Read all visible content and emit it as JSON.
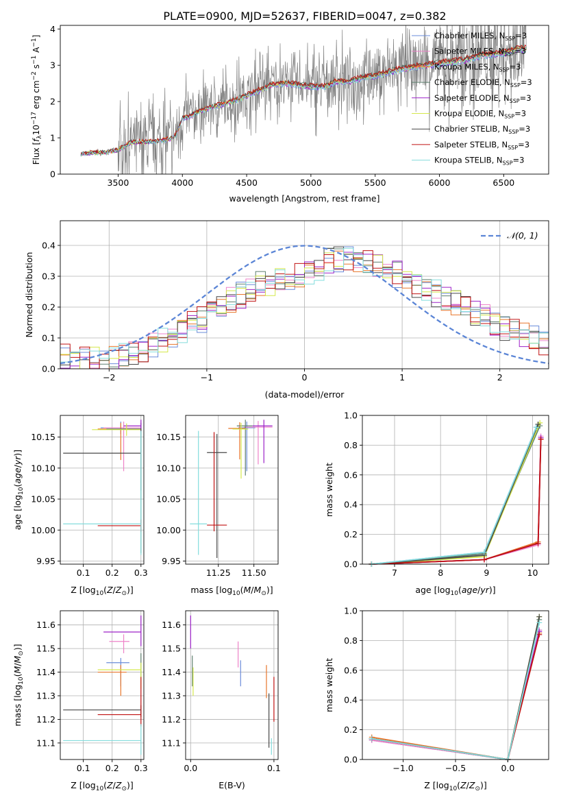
{
  "figure_title": "PLATE=0900, MJD=52637, FIBERID=0047, z=0.382",
  "legend_models": [
    {
      "name": "Chabrier MILES",
      "color": "#6a8bd9"
    },
    {
      "name": "Salpeter MILES",
      "color": "#ee82c8"
    },
    {
      "name": "Kroupa MILES",
      "color": "#e8762a"
    },
    {
      "name": "Chabrier ELODIE",
      "color": "#5d7f6e"
    },
    {
      "name": "Salpeter ELODIE",
      "color": "#9c20c8"
    },
    {
      "name": "Kroupa ELODIE",
      "color": "#d4e84a"
    },
    {
      "name": "Chabrier STELIB",
      "color": "#474747"
    },
    {
      "name": "Salpeter STELIB",
      "color": "#c01010"
    },
    {
      "name": "Kroupa STELIB",
      "color": "#82dcdc"
    }
  ],
  "legend_suffix": "SSP",
  "legend_count": "=3",
  "chart_data": [
    {
      "id": "spectrum",
      "type": "line",
      "title": "PLATE=0900, MJD=52637, FIBERID=0047, z=0.382",
      "xlabel": "wavelength [Angstrom, rest frame]",
      "ylabel": "Flux [f_λ 10^-17 erg cm^-2 s^-1 A^-1]",
      "xlim": [
        3050,
        6850
      ],
      "ylim": [
        0,
        4.1
      ],
      "xticks": [
        3500,
        4000,
        4500,
        5000,
        5500,
        6000,
        6500
      ],
      "yticks": [
        0,
        1,
        2,
        3,
        4
      ],
      "continuum_x": [
        3200,
        3300,
        3400,
        3500,
        3600,
        3700,
        3800,
        3900,
        3950,
        4000,
        4100,
        4200,
        4300,
        4400,
        4500,
        4600,
        4700,
        4800,
        4900,
        5000,
        5100,
        5200,
        5300,
        5400,
        5500,
        5600,
        5700,
        5800,
        5900,
        6000,
        6100,
        6200,
        6300,
        6400,
        6500,
        6600,
        6700
      ],
      "continuum_y": [
        0.55,
        0.6,
        0.6,
        0.68,
        0.9,
        0.9,
        0.92,
        0.98,
        1.1,
        1.55,
        1.7,
        1.85,
        1.95,
        2.05,
        2.2,
        2.35,
        2.5,
        2.55,
        2.5,
        2.45,
        2.45,
        2.6,
        2.6,
        2.7,
        2.75,
        2.85,
        2.95,
        3.0,
        3.05,
        3.1,
        3.15,
        3.2,
        3.3,
        3.35,
        3.4,
        3.5,
        3.5
      ],
      "grid": false
    },
    {
      "id": "residuals",
      "type": "histogram",
      "xlabel": "(data-model)/error",
      "ylabel": "Normed distribution",
      "xlim": [
        -2.5,
        2.5
      ],
      "ylim": [
        0,
        0.48
      ],
      "xticks": [
        -2,
        -1,
        0,
        1,
        2
      ],
      "yticks": [
        0.0,
        0.1,
        0.2,
        0.3,
        0.4
      ],
      "bin_width": 0.1,
      "envelope_x": [
        -2.5,
        -2.0,
        -1.5,
        -1.0,
        -0.5,
        0.0,
        0.3,
        0.5,
        0.8,
        1.0,
        1.5,
        2.0,
        2.5
      ],
      "envelope_y": [
        0.04,
        0.03,
        0.08,
        0.17,
        0.27,
        0.3,
        0.36,
        0.35,
        0.33,
        0.3,
        0.22,
        0.14,
        0.08
      ],
      "reference_curve": "𝒩(0, 1)",
      "grid": true
    },
    {
      "id": "age_vs_Z",
      "type": "errorbar",
      "xlabel": "Z [log10(Z/Z⊙)]",
      "ylabel": "age [log10(age/yr)]",
      "xlim": [
        0.02,
        0.31
      ],
      "ylim": [
        9.945,
        10.185
      ],
      "xticks": [
        0.1,
        0.2,
        0.3
      ],
      "yticks": [
        9.95,
        10.0,
        10.05,
        10.1,
        10.15
      ],
      "points": [
        {
          "model": 0,
          "x": 0.23,
          "xerr": [
            0.07,
            0.07
          ],
          "y": 10.165,
          "yerr": [
            0.01,
            0.01
          ]
        },
        {
          "model": 1,
          "x": 0.24,
          "xerr": [
            0.07,
            0.06
          ],
          "y": 10.165,
          "yerr": [
            0.07,
            0.01
          ]
        },
        {
          "model": 2,
          "x": 0.23,
          "xerr": [
            0.08,
            0.07
          ],
          "y": 10.163,
          "yerr": [
            0.05,
            0.01
          ]
        },
        {
          "model": 3,
          "x": 0.3,
          "xerr": [
            0.12,
            0.0
          ],
          "y": 10.163,
          "yerr": [
            0.2,
            0.01
          ]
        },
        {
          "model": 4,
          "x": 0.3,
          "xerr": [
            0.06,
            0.0
          ],
          "y": 10.168,
          "yerr": [
            0.01,
            0.01
          ]
        },
        {
          "model": 5,
          "x": 0.25,
          "xerr": [
            0.12,
            0.05
          ],
          "y": 10.162,
          "yerr": [
            0.01,
            0.01
          ]
        },
        {
          "model": 6,
          "x": 0.3,
          "xerr": [
            0.27,
            0.0
          ],
          "y": 10.124,
          "yerr": [
            0.06,
            0.04
          ]
        },
        {
          "model": 7,
          "x": 0.3,
          "xerr": [
            0.15,
            0.0
          ],
          "y": 10.007,
          "yerr": [
            0.01,
            0.01
          ]
        },
        {
          "model": 8,
          "x": 0.3,
          "xerr": [
            0.27,
            0.0
          ],
          "y": 10.01,
          "yerr": [
            0.05,
            0.15
          ]
        }
      ],
      "grid": true
    },
    {
      "id": "age_vs_mass",
      "type": "errorbar",
      "xlabel": "mass [log10(M/M⊙)]",
      "ylabel": "",
      "xlim": [
        11.02,
        11.67
      ],
      "ylim": [
        9.945,
        10.185
      ],
      "xticks": [
        11.25,
        11.5
      ],
      "yticks": [
        9.95,
        10.0,
        10.05,
        10.1,
        10.15
      ],
      "points": [
        {
          "model": 0,
          "x": 11.45,
          "xerr": [
            0.06,
            0.06
          ],
          "y": 10.165,
          "yerr": [
            0.07,
            0.01
          ]
        },
        {
          "model": 1,
          "x": 11.53,
          "xerr": [
            0.1,
            0.1
          ],
          "y": 10.166,
          "yerr": [
            0.06,
            0.01
          ]
        },
        {
          "model": 2,
          "x": 11.4,
          "xerr": [
            0.08,
            0.04
          ],
          "y": 10.164,
          "yerr": [
            0.05,
            0.01
          ]
        },
        {
          "model": 3,
          "x": 11.44,
          "xerr": [
            0.06,
            0.05
          ],
          "y": 10.168,
          "yerr": [
            0.08,
            0.01
          ]
        },
        {
          "model": 4,
          "x": 11.57,
          "xerr": [
            0.08,
            0.06
          ],
          "y": 10.168,
          "yerr": [
            0.06,
            0.01
          ]
        },
        {
          "model": 5,
          "x": 11.41,
          "xerr": [
            0.06,
            0.05
          ],
          "y": 10.163,
          "yerr": [
            0.08,
            0.01
          ]
        },
        {
          "model": 6,
          "x": 11.24,
          "xerr": [
            0.07,
            0.07
          ],
          "y": 10.125,
          "yerr": [
            0.17,
            0.03
          ]
        },
        {
          "model": 7,
          "x": 11.22,
          "xerr": [
            0.05,
            0.09
          ],
          "y": 10.008,
          "yerr": [
            0.01,
            0.15
          ]
        },
        {
          "model": 8,
          "x": 11.11,
          "xerr": [
            0.06,
            0.06
          ],
          "y": 10.01,
          "yerr": [
            0.05,
            0.15
          ]
        }
      ],
      "grid": true
    },
    {
      "id": "mass_weight_vs_age",
      "type": "line",
      "xlabel": "age [log10(age/yr)]",
      "ylabel": "mass weight",
      "xlim": [
        6.3,
        10.35
      ],
      "ylim": [
        0,
        1.0
      ],
      "xticks": [
        7,
        8,
        9,
        10
      ],
      "yticks": [
        0.0,
        0.2,
        0.4,
        0.6,
        0.8,
        1.0
      ],
      "series": [
        {
          "model": 0,
          "x": [
            6.5,
            8.95,
            10.08
          ],
          "y": [
            0.0,
            0.08,
            0.92
          ]
        },
        {
          "model": 1,
          "x": [
            6.5,
            8.95,
            10.12,
            10.18
          ],
          "y": [
            0.0,
            0.03,
            0.13,
            0.86
          ]
        },
        {
          "model": 2,
          "x": [
            6.5,
            8.95,
            10.12,
            10.18
          ],
          "y": [
            0.0,
            0.03,
            0.15,
            0.84
          ]
        },
        {
          "model": 3,
          "x": [
            6.5,
            8.95,
            10.16
          ],
          "y": [
            0.0,
            0.07,
            0.93
          ]
        },
        {
          "model": 4,
          "x": [
            6.5,
            8.95,
            10.12,
            10.18
          ],
          "y": [
            0.0,
            0.03,
            0.14,
            0.85
          ]
        },
        {
          "model": 5,
          "x": [
            6.5,
            8.95,
            10.16
          ],
          "y": [
            0.0,
            0.05,
            0.95
          ]
        },
        {
          "model": 6,
          "x": [
            6.5,
            8.95,
            10.12
          ],
          "y": [
            0.0,
            0.06,
            0.94
          ]
        },
        {
          "model": 7,
          "x": [
            6.5,
            8.95,
            10.12,
            10.18
          ],
          "y": [
            0.0,
            0.03,
            0.14,
            0.84
          ]
        },
        {
          "model": 8,
          "x": [
            6.5,
            8.95,
            10.08
          ],
          "y": [
            0.0,
            0.08,
            0.92
          ]
        }
      ],
      "grid": true
    },
    {
      "id": "mass_vs_Z",
      "type": "errorbar",
      "xlabel": "Z [log10(Z/Z⊙)]",
      "ylabel": "mass [log10(M/M⊙)]",
      "xlim": [
        0.02,
        0.31
      ],
      "ylim": [
        11.03,
        11.66
      ],
      "xticks": [
        0.1,
        0.2,
        0.3
      ],
      "yticks": [
        11.1,
        11.2,
        11.3,
        11.4,
        11.5,
        11.6
      ],
      "points": [
        {
          "model": 0,
          "x": 0.23,
          "xerr": [
            0.05,
            0.03
          ],
          "y": 11.44,
          "yerr": [
            0.1,
            0.02
          ]
        },
        {
          "model": 1,
          "x": 0.24,
          "xerr": [
            0.05,
            0.02
          ],
          "y": 11.53,
          "yerr": [
            0.05,
            0.03
          ]
        },
        {
          "model": 2,
          "x": 0.23,
          "xerr": [
            0.08,
            0.02
          ],
          "y": 11.4,
          "yerr": [
            0.1,
            0.03
          ]
        },
        {
          "model": 3,
          "x": 0.3,
          "xerr": [
            0.0,
            0.0
          ],
          "y": 11.42,
          "yerr": [
            0.04,
            0.06
          ]
        },
        {
          "model": 4,
          "x": 0.3,
          "xerr": [
            0.13,
            0.0
          ],
          "y": 11.57,
          "yerr": [
            0.06,
            0.07
          ]
        },
        {
          "model": 5,
          "x": 0.3,
          "xerr": [
            0.15,
            0.0
          ],
          "y": 11.41,
          "yerr": [
            0.08,
            0.03
          ]
        },
        {
          "model": 6,
          "x": 0.3,
          "xerr": [
            0.27,
            0.0
          ],
          "y": 11.24,
          "yerr": [
            0.03,
            0.02
          ]
        },
        {
          "model": 7,
          "x": 0.3,
          "xerr": [
            0.15,
            0.0
          ],
          "y": 11.22,
          "yerr": [
            0.05,
            0.16
          ]
        },
        {
          "model": 8,
          "x": 0.3,
          "xerr": [
            0.27,
            0.0
          ],
          "y": 11.11,
          "yerr": [
            0.06,
            0.07
          ]
        }
      ],
      "grid": true
    },
    {
      "id": "mass_vs_EBV",
      "type": "errorbar",
      "xlabel": "E(B-V)",
      "ylabel": "",
      "xlim": [
        -0.006,
        0.105
      ],
      "ylim": [
        11.03,
        11.66
      ],
      "xticks": [
        0.0,
        0.1
      ],
      "yticks": [
        11.1,
        11.2,
        11.3,
        11.4,
        11.5,
        11.6
      ],
      "points": [
        {
          "model": 0,
          "x": 0.06,
          "xerr": [
            0.0,
            0.0
          ],
          "y": 11.4,
          "yerr": [
            0.06,
            0.05
          ]
        },
        {
          "model": 1,
          "x": 0.057,
          "xerr": [
            0.0,
            0.0
          ],
          "y": 11.48,
          "yerr": [
            0.06,
            0.05
          ]
        },
        {
          "model": 2,
          "x": 0.091,
          "xerr": [
            0.0,
            0.0
          ],
          "y": 11.36,
          "yerr": [
            0.07,
            0.07
          ]
        },
        {
          "model": 3,
          "x": 0.002,
          "xerr": [
            0.0,
            0.0
          ],
          "y": 11.41,
          "yerr": [
            0.07,
            0.06
          ]
        },
        {
          "model": 4,
          "x": 0.0,
          "xerr": [
            0.0,
            0.0
          ],
          "y": 11.57,
          "yerr": [
            0.07,
            0.07
          ]
        },
        {
          "model": 5,
          "x": 0.003,
          "xerr": [
            0.0,
            0.0
          ],
          "y": 11.37,
          "yerr": [
            0.07,
            0.05
          ]
        },
        {
          "model": 6,
          "x": 0.094,
          "xerr": [
            0.0,
            0.0
          ],
          "y": 11.2,
          "yerr": [
            0.12,
            0.11
          ]
        },
        {
          "model": 7,
          "x": 0.1,
          "xerr": [
            0.0,
            0.0
          ],
          "y": 11.29,
          "yerr": [
            0.1,
            0.09
          ]
        },
        {
          "model": 8,
          "x": 0.097,
          "xerr": [
            0.0,
            0.0
          ],
          "y": 11.09,
          "yerr": [
            0.04,
            0.03
          ]
        }
      ],
      "grid": true
    },
    {
      "id": "mass_weight_vs_Z",
      "type": "line",
      "xlabel": "Z [log10(Z/Z⊙)]",
      "ylabel": "mass weight",
      "xlim": [
        -1.39,
        0.39
      ],
      "ylim": [
        0,
        1.0
      ],
      "xticks": [
        -1.0,
        -0.5,
        0.0
      ],
      "yticks": [
        0.0,
        0.2,
        0.4,
        0.6,
        0.8,
        1.0
      ],
      "series": [
        {
          "model": 0,
          "x": [
            -1.3,
            0.0,
            0.3
          ],
          "y": [
            0.13,
            0.0,
            0.87
          ]
        },
        {
          "model": 1,
          "x": [
            -1.3,
            0.0,
            0.3
          ],
          "y": [
            0.13,
            0.0,
            0.87
          ]
        },
        {
          "model": 2,
          "x": [
            -1.3,
            0.0,
            0.3
          ],
          "y": [
            0.15,
            0.0,
            0.85
          ]
        },
        {
          "model": 3,
          "x": [
            -1.3,
            0.0,
            0.3
          ],
          "y": [
            0.14,
            0.0,
            0.94
          ]
        },
        {
          "model": 4,
          "x": [
            -1.3,
            0.0,
            0.3
          ],
          "y": [
            0.14,
            0.0,
            0.86
          ]
        },
        {
          "model": 5,
          "x": [
            -1.3,
            0.0,
            0.3
          ],
          "y": [
            0.14,
            0.0,
            0.96
          ]
        },
        {
          "model": 6,
          "x": [
            -1.3,
            0.0,
            0.3
          ],
          "y": [
            0.14,
            0.0,
            0.96
          ]
        },
        {
          "model": 7,
          "x": [
            -1.3,
            0.0,
            0.3
          ],
          "y": [
            0.14,
            0.0,
            0.84
          ]
        },
        {
          "model": 8,
          "x": [
            -1.3,
            0.0,
            0.3
          ],
          "y": [
            0.14,
            0.0,
            0.92
          ]
        }
      ],
      "grid": true
    }
  ]
}
